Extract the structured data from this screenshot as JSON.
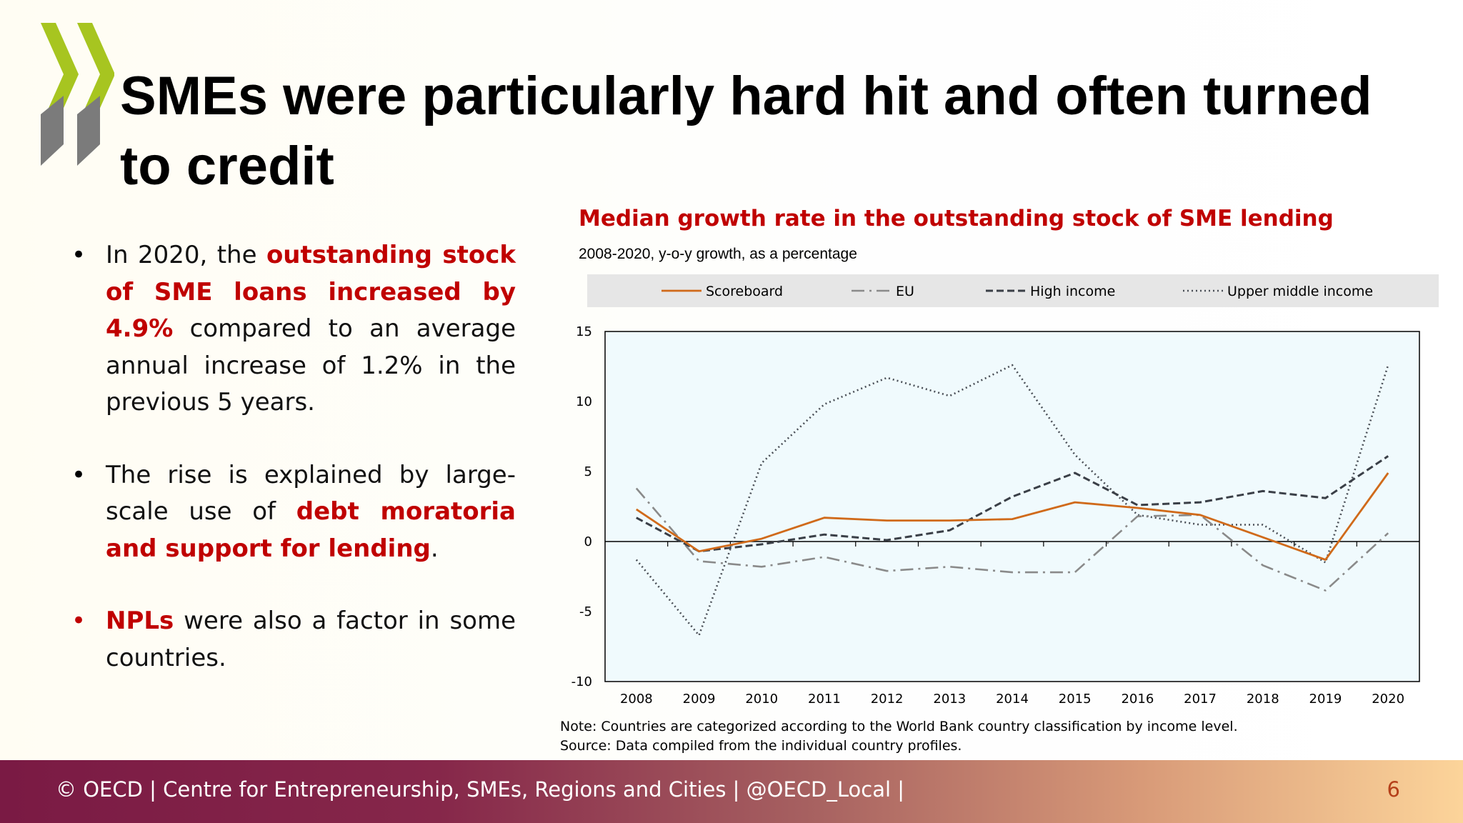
{
  "slide": {
    "title": "SMEs were particularly hard hit and often turned to credit",
    "page_number": "6",
    "footer": "© OECD | Centre for Entrepreneurship, SMEs, Regions and Cities | @OECD_Local |"
  },
  "logo": {
    "name": "oecd-chevron-logo",
    "colors": {
      "green": "#a7c520",
      "grey": "#7b7b7b"
    }
  },
  "bullets": [
    {
      "bullet_color": "#000000",
      "parts": [
        {
          "text": "In 2020, the ",
          "highlight": false
        },
        {
          "text": "outstanding stock of SME loans increased by 4.9%",
          "highlight": true
        },
        {
          "text": " compared to an average annual increase of 1.2% in the previous 5 years.",
          "highlight": false
        }
      ]
    },
    {
      "bullet_color": "#000000",
      "parts": [
        {
          "text": "The rise is explained by large-scale use of ",
          "highlight": false
        },
        {
          "text": "debt moratoria and support for lending",
          "highlight": true
        },
        {
          "text": ".",
          "highlight": false
        }
      ]
    },
    {
      "bullet_color": "#c00000",
      "parts": [
        {
          "text": "NPLs",
          "highlight": true
        },
        {
          "text": " were also a factor in some countries.",
          "highlight": false
        }
      ]
    }
  ],
  "chart_data": {
    "type": "line",
    "title": "Median growth rate in the outstanding stock of SME lending",
    "subtitle": "2008-2020, y-o-y growth, as a percentage",
    "categories": [
      "2008",
      "2009",
      "2010",
      "2011",
      "2012",
      "2013",
      "2014",
      "2015",
      "2016",
      "2017",
      "2018",
      "2019",
      "2020"
    ],
    "ylim": [
      -10,
      15
    ],
    "yticks": [
      15,
      10,
      5,
      0,
      -5,
      -10
    ],
    "legend_position": "top",
    "grid": false,
    "plot_background": "#f0fafd",
    "series": [
      {
        "name": "Scoreboard",
        "color": "#d06a1a",
        "dash": "solid",
        "values": [
          2.3,
          -0.7,
          0.2,
          1.7,
          1.5,
          1.5,
          1.6,
          2.8,
          2.4,
          1.9,
          0.3,
          -1.3,
          4.9
        ]
      },
      {
        "name": "EU",
        "color": "#8a8a8a",
        "dash": "dashdot",
        "values": [
          3.8,
          -1.4,
          -1.8,
          -1.1,
          -2.1,
          -1.8,
          -2.2,
          -2.2,
          1.8,
          1.9,
          -1.7,
          -3.5,
          0.6
        ]
      },
      {
        "name": "High income",
        "color": "#3a3f47",
        "dash": "dashed",
        "values": [
          1.7,
          -0.7,
          -0.2,
          0.5,
          0.1,
          0.8,
          3.2,
          4.9,
          2.6,
          2.8,
          3.6,
          3.1,
          6.1
        ]
      },
      {
        "name": "Upper middle income",
        "color": "#4a4f57",
        "dash": "dotted",
        "values": [
          -1.3,
          -6.7,
          5.6,
          9.8,
          11.7,
          10.4,
          12.6,
          6.2,
          1.9,
          1.2,
          1.2,
          -1.5,
          12.6
        ]
      }
    ],
    "notes": [
      "Note: Countries are categorized according to the World Bank country classification by income level.",
      "Source: Data compiled from the individual country profiles."
    ]
  }
}
